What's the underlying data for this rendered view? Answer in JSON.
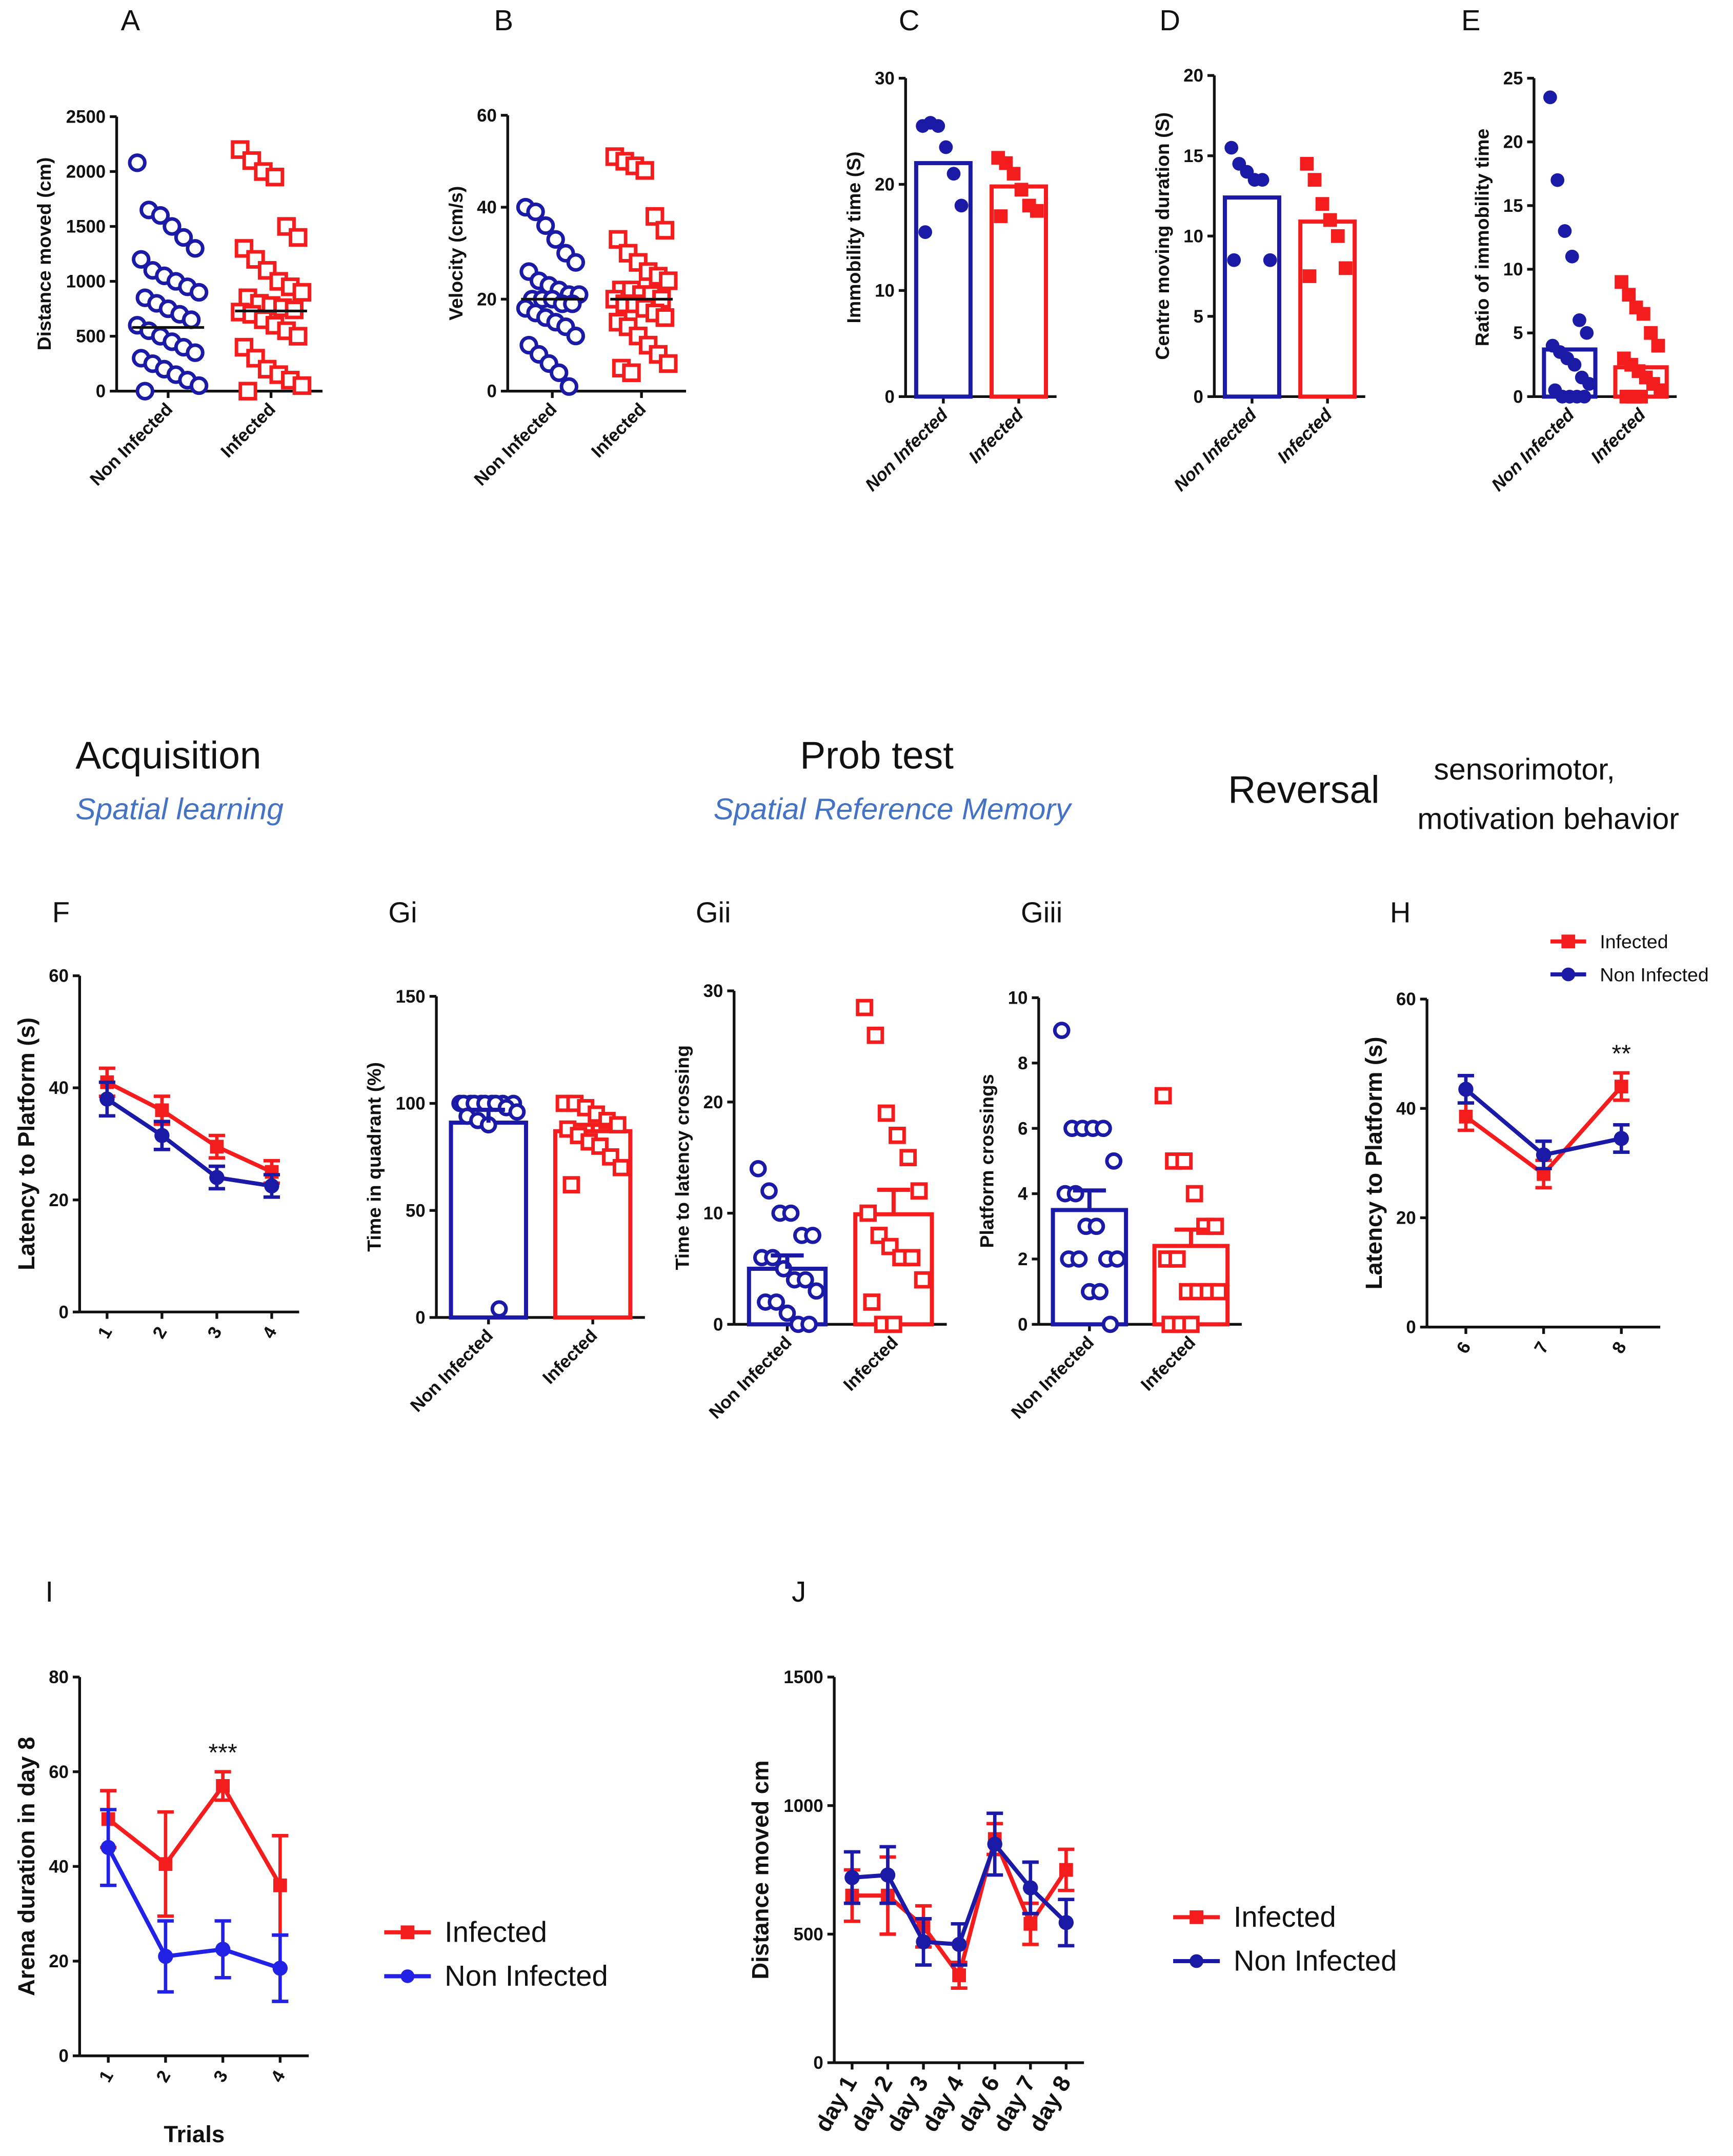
{
  "sections": {
    "acquisition": "Acquisition",
    "acquisition_sub": "Spatial learning",
    "probe": "Prob test",
    "probe_sub": "Spatial Reference Memory",
    "reversal": "Reversal",
    "sensori_1": "sensorimotor,",
    "sensori_2": "motivation  behavior"
  },
  "chart_data": [
    {
      "type": "dotplot",
      "label": "A",
      "ylabel": "Distance moved (cm)",
      "categories": [
        "Non Infected",
        "Infected"
      ],
      "colors": [
        "#1a1aa6",
        "#f41c1c"
      ],
      "marker": [
        "circle",
        "square"
      ],
      "filled": false,
      "means": [
        580,
        730
      ],
      "points": [
        [
          2080,
          1650,
          1600,
          1500,
          1400,
          1300,
          1200,
          1100,
          1050,
          1000,
          950,
          900,
          850,
          800,
          750,
          700,
          650,
          600,
          550,
          500,
          450,
          400,
          350,
          300,
          250,
          200,
          150,
          100,
          50,
          0
        ],
        [
          2200,
          2100,
          2000,
          1950,
          1500,
          1400,
          1300,
          1200,
          1100,
          1000,
          950,
          900,
          850,
          800,
          780,
          760,
          740,
          720,
          700,
          650,
          600,
          550,
          500,
          400,
          300,
          200,
          150,
          100,
          50,
          0
        ]
      ],
      "ylim": [
        0,
        2500
      ],
      "yticks": [
        0,
        500,
        1000,
        1500,
        2000,
        2500
      ]
    },
    {
      "type": "dotplot",
      "label": "B",
      "ylabel": "Velocity  (cm/s)",
      "categories": [
        "Non Infected",
        "Infected"
      ],
      "colors": [
        "#1a1aa6",
        "#f41c1c"
      ],
      "marker": [
        "circle",
        "square"
      ],
      "filled": false,
      "means": [
        20,
        20
      ],
      "points": [
        [
          40,
          39,
          36,
          33,
          30,
          28,
          26,
          24,
          23,
          22,
          21,
          21,
          20,
          20,
          20,
          19,
          19,
          18,
          17,
          16,
          15,
          14,
          12,
          10,
          8,
          6,
          4,
          1
        ],
        [
          51,
          50,
          49,
          48,
          38,
          35,
          33,
          30,
          28,
          26,
          25,
          24,
          22,
          22,
          21,
          21,
          20,
          20,
          19,
          19,
          18,
          17,
          16,
          15,
          14,
          12,
          10,
          8,
          6,
          5,
          4
        ]
      ],
      "ylim": [
        0,
        60
      ],
      "yticks": [
        0,
        20,
        40,
        60
      ]
    },
    {
      "type": "bar",
      "label": "C",
      "ylabel": "Immobility time (S)",
      "categories": [
        "Non Infected",
        "Infected"
      ],
      "colors": [
        "#1a1aa6",
        "#f41c1c"
      ],
      "marker": [
        "circle",
        "square"
      ],
      "filled": true,
      "means": [
        22,
        19.8
      ],
      "points": [
        [
          25.5,
          25.8,
          25.5,
          23.5,
          21,
          18,
          15.5
        ],
        [
          22.5,
          22,
          21,
          19.5,
          18,
          17.5,
          17
        ]
      ],
      "ylim": [
        0,
        30
      ],
      "yticks": [
        0,
        10,
        20,
        30
      ]
    },
    {
      "type": "bar",
      "label": "D",
      "ylabel": "Centre moving duration (S)",
      "categories": [
        "Non Infected",
        "Infected"
      ],
      "colors": [
        "#1a1aa6",
        "#f41c1c"
      ],
      "marker": [
        "circle",
        "square"
      ],
      "filled": true,
      "means": [
        12.4,
        10.9
      ],
      "points": [
        [
          15.5,
          14.5,
          14,
          13.5,
          13.5,
          8.5,
          8.5
        ],
        [
          14.5,
          13.5,
          12,
          11,
          10,
          8,
          7.5
        ]
      ],
      "ylim": [
        0,
        20
      ],
      "yticks": [
        0,
        5,
        10,
        15,
        20
      ]
    },
    {
      "type": "bar",
      "label": "E",
      "ylabel": "Ratio of immobility time",
      "categories": [
        "Non Infected",
        "Infected"
      ],
      "colors": [
        "#1a1aa6",
        "#f41c1c"
      ],
      "marker": [
        "circle",
        "square"
      ],
      "filled": true,
      "means": [
        3.7,
        2.3
      ],
      "points": [
        [
          23.5,
          17,
          13,
          11,
          6,
          5,
          4,
          3.5,
          3,
          2.5,
          1.5,
          1,
          0.5,
          0,
          0,
          0,
          0
        ],
        [
          9,
          8,
          7,
          6.5,
          5,
          4,
          3,
          2.5,
          2,
          1.5,
          1,
          0.5,
          0,
          0,
          0
        ]
      ],
      "ylim": [
        0,
        25
      ],
      "yticks": [
        0,
        5,
        10,
        15,
        20,
        25
      ]
    },
    {
      "type": "line",
      "label": "F",
      "ylabel": "Latency to Platform (s)",
      "categories": [
        "1",
        "2",
        "3",
        "4"
      ],
      "series": [
        {
          "color": "#f41c1c",
          "marker": "square",
          "values": [
            41,
            36,
            29.5,
            25
          ],
          "errors": [
            2.5,
            2.5,
            2,
            2
          ]
        },
        {
          "color": "#1a1aa6",
          "marker": "circle",
          "values": [
            38,
            31.5,
            24,
            22.5
          ],
          "errors": [
            3,
            2.5,
            2,
            2
          ]
        }
      ],
      "ylim": [
        0,
        60
      ],
      "yticks": [
        0,
        20,
        40,
        60
      ]
    },
    {
      "type": "bar",
      "label": "Gi",
      "ylabel": "Time in quadrant (%)",
      "categories": [
        "Non Infected",
        "Infected"
      ],
      "colors": [
        "#1a1aa6",
        "#f41c1c"
      ],
      "marker": [
        "circle",
        "square"
      ],
      "filled": false,
      "means": [
        91,
        87
      ],
      "errors": [
        6,
        3
      ],
      "points": [
        [
          100,
          100,
          100,
          100,
          100,
          100,
          100,
          100,
          100,
          100,
          98,
          96,
          94,
          92,
          90,
          4
        ],
        [
          100,
          100,
          98,
          95,
          92,
          90,
          88,
          85,
          82,
          80,
          75,
          70,
          62
        ]
      ],
      "ylim": [
        0,
        150
      ],
      "yticks": [
        0,
        50,
        100,
        150
      ]
    },
    {
      "type": "bar",
      "label": "Gii",
      "ylabel": "Time to latency crossing",
      "categories": [
        "Non Infected",
        "Infected"
      ],
      "colors": [
        "#1a1aa6",
        "#f41c1c"
      ],
      "marker": [
        "circle",
        "square"
      ],
      "filled": false,
      "means": [
        5,
        9.9
      ],
      "errors": [
        1.2,
        2.2
      ],
      "points": [
        [
          14,
          12,
          10,
          10,
          8,
          8,
          6,
          6,
          5,
          4,
          4,
          3,
          2,
          2,
          1,
          0,
          0
        ],
        [
          28.5,
          26,
          19,
          17,
          15,
          12,
          10,
          8,
          7,
          6,
          6,
          4,
          2,
          0,
          0
        ]
      ],
      "ylim": [
        0,
        30
      ],
      "yticks": [
        0,
        10,
        20,
        30
      ]
    },
    {
      "type": "bar",
      "label": "Giii",
      "ylabel": "Platform crossings",
      "categories": [
        "Non Infected",
        "Infected"
      ],
      "colors": [
        "#1a1aa6",
        "#f41c1c"
      ],
      "marker": [
        "circle",
        "square"
      ],
      "filled": false,
      "means": [
        3.5,
        2.4
      ],
      "errors": [
        0.6,
        0.5
      ],
      "points": [
        [
          9,
          6,
          6,
          6,
          6,
          5,
          4,
          4,
          3,
          3,
          2,
          2,
          2,
          2,
          1,
          1,
          0
        ],
        [
          7,
          5,
          5,
          4,
          3,
          3,
          2,
          2,
          1,
          1,
          1,
          1,
          0,
          0,
          0
        ]
      ],
      "ylim": [
        0,
        10
      ],
      "yticks": [
        0,
        2,
        4,
        6,
        8,
        10
      ]
    },
    {
      "type": "line",
      "label": "H",
      "ylabel": "Latency to Platform (s)",
      "categories": [
        "6",
        "7",
        "8"
      ],
      "legend": "top-right",
      "series": [
        {
          "name": "Infected",
          "color": "#f41c1c",
          "marker": "square",
          "values": [
            38.5,
            28,
            44
          ],
          "errors": [
            2.5,
            2.5,
            2.5
          ]
        },
        {
          "name": "Non Infected",
          "color": "#1a1aa6",
          "marker": "circle",
          "values": [
            43.5,
            31.5,
            34.5
          ],
          "errors": [
            2.5,
            2.5,
            2.5
          ]
        }
      ],
      "annotations": [
        {
          "text": "**",
          "category": "8"
        }
      ],
      "ylim": [
        0,
        60
      ],
      "yticks": [
        0,
        20,
        40,
        60
      ]
    },
    {
      "type": "line",
      "label": "I",
      "ylabel": "Arena duration in day 8",
      "xlabel": "Trials",
      "categories": [
        "1",
        "2",
        "3",
        "4"
      ],
      "legend": "right",
      "series": [
        {
          "name": "Infected",
          "color": "#f41c1c",
          "marker": "square",
          "values": [
            50,
            40.5,
            57,
            36
          ],
          "errors": [
            6,
            11,
            3,
            10.5
          ]
        },
        {
          "name": "Non Infected",
          "color": "#2222e6",
          "marker": "circle",
          "values": [
            44,
            21,
            22.5,
            18.5
          ],
          "errors": [
            8,
            7.5,
            6,
            7
          ]
        }
      ],
      "annotations": [
        {
          "text": "***",
          "category": "3"
        }
      ],
      "ylim": [
        0,
        80
      ],
      "yticks": [
        0,
        20,
        40,
        60,
        80
      ]
    },
    {
      "type": "line",
      "label": "J",
      "ylabel": "Distance moved cm",
      "categories": [
        "day 1",
        "day 2",
        "day 3",
        "day 4",
        "day 6",
        "day 7",
        "day 8"
      ],
      "legend": "right",
      "series": [
        {
          "name": "Infected",
          "color": "#f41c1c",
          "marker": "square",
          "values": [
            650,
            650,
            530,
            340,
            870,
            540,
            750
          ],
          "errors": [
            100,
            150,
            80,
            50,
            60,
            80,
            80
          ]
        },
        {
          "name": "Non Infected",
          "color": "#1a1aa6",
          "marker": "circle",
          "values": [
            720,
            730,
            470,
            460,
            850,
            680,
            545
          ],
          "errors": [
            100,
            110,
            90,
            80,
            120,
            100,
            90
          ]
        }
      ],
      "ylim": [
        0,
        1500
      ],
      "yticks": [
        0,
        500,
        1000,
        1500
      ]
    }
  ]
}
